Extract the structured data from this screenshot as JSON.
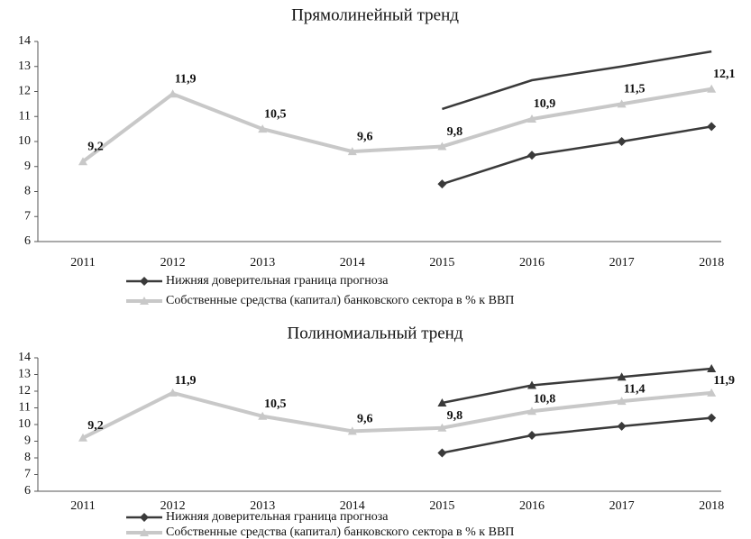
{
  "chart_data": [
    {
      "type": "line",
      "title": "Прямолинейный тренд",
      "categories": [
        "2011",
        "2012",
        "2013",
        "2014",
        "2015",
        "2016",
        "2017",
        "2018"
      ],
      "ylim": [
        6,
        14
      ],
      "yticks": [
        6,
        7,
        8,
        9,
        10,
        11,
        12,
        13,
        14
      ],
      "series": [
        {
          "name": "Нижняя доверительная граница прогноза",
          "color": "#3a3a3a",
          "marker": "diamond",
          "values": [
            null,
            null,
            null,
            null,
            8.3,
            9.45,
            10.0,
            10.6
          ]
        },
        {
          "color": "#3a3a3a",
          "marker": "none",
          "values": [
            null,
            null,
            null,
            null,
            11.3,
            12.45,
            13.0,
            13.6
          ]
        },
        {
          "name": "Собственные средства (капитал) банковского сектора в % к ВВП",
          "color": "#c8c8c8",
          "marker": "triangle",
          "values": [
            9.2,
            11.9,
            10.5,
            9.6,
            9.8,
            10.9,
            11.5,
            12.1
          ],
          "value_labels": [
            "9,2",
            "11,9",
            "10,5",
            "9,6",
            "9,8",
            "10,9",
            "11,5",
            "12,1"
          ]
        }
      ]
    },
    {
      "type": "line",
      "title": "Полиномиальный тренд",
      "categories": [
        "2011",
        "2012",
        "2013",
        "2014",
        "2015",
        "2016",
        "2017",
        "2018"
      ],
      "ylim": [
        6,
        14
      ],
      "yticks": [
        6,
        7,
        8,
        9,
        10,
        11,
        12,
        13,
        14
      ],
      "series": [
        {
          "name": "Нижняя доверительная граница прогноза",
          "color": "#3a3a3a",
          "marker": "diamond",
          "values": [
            null,
            null,
            null,
            null,
            8.3,
            9.35,
            9.9,
            10.4
          ]
        },
        {
          "color": "#3a3a3a",
          "marker": "triangle",
          "values": [
            null,
            null,
            null,
            null,
            11.3,
            12.35,
            12.85,
            13.35
          ]
        },
        {
          "name": "Собственные средства (капитал) банковского сектора в % к ВВП",
          "color": "#c8c8c8",
          "marker": "triangle",
          "values": [
            9.2,
            11.9,
            10.5,
            9.6,
            9.8,
            10.8,
            11.4,
            11.9
          ],
          "value_labels": [
            "9,2",
            "11,9",
            "10,5",
            "9,6",
            "9,8",
            "10,8",
            "11,4",
            "11,9"
          ]
        }
      ]
    }
  ]
}
